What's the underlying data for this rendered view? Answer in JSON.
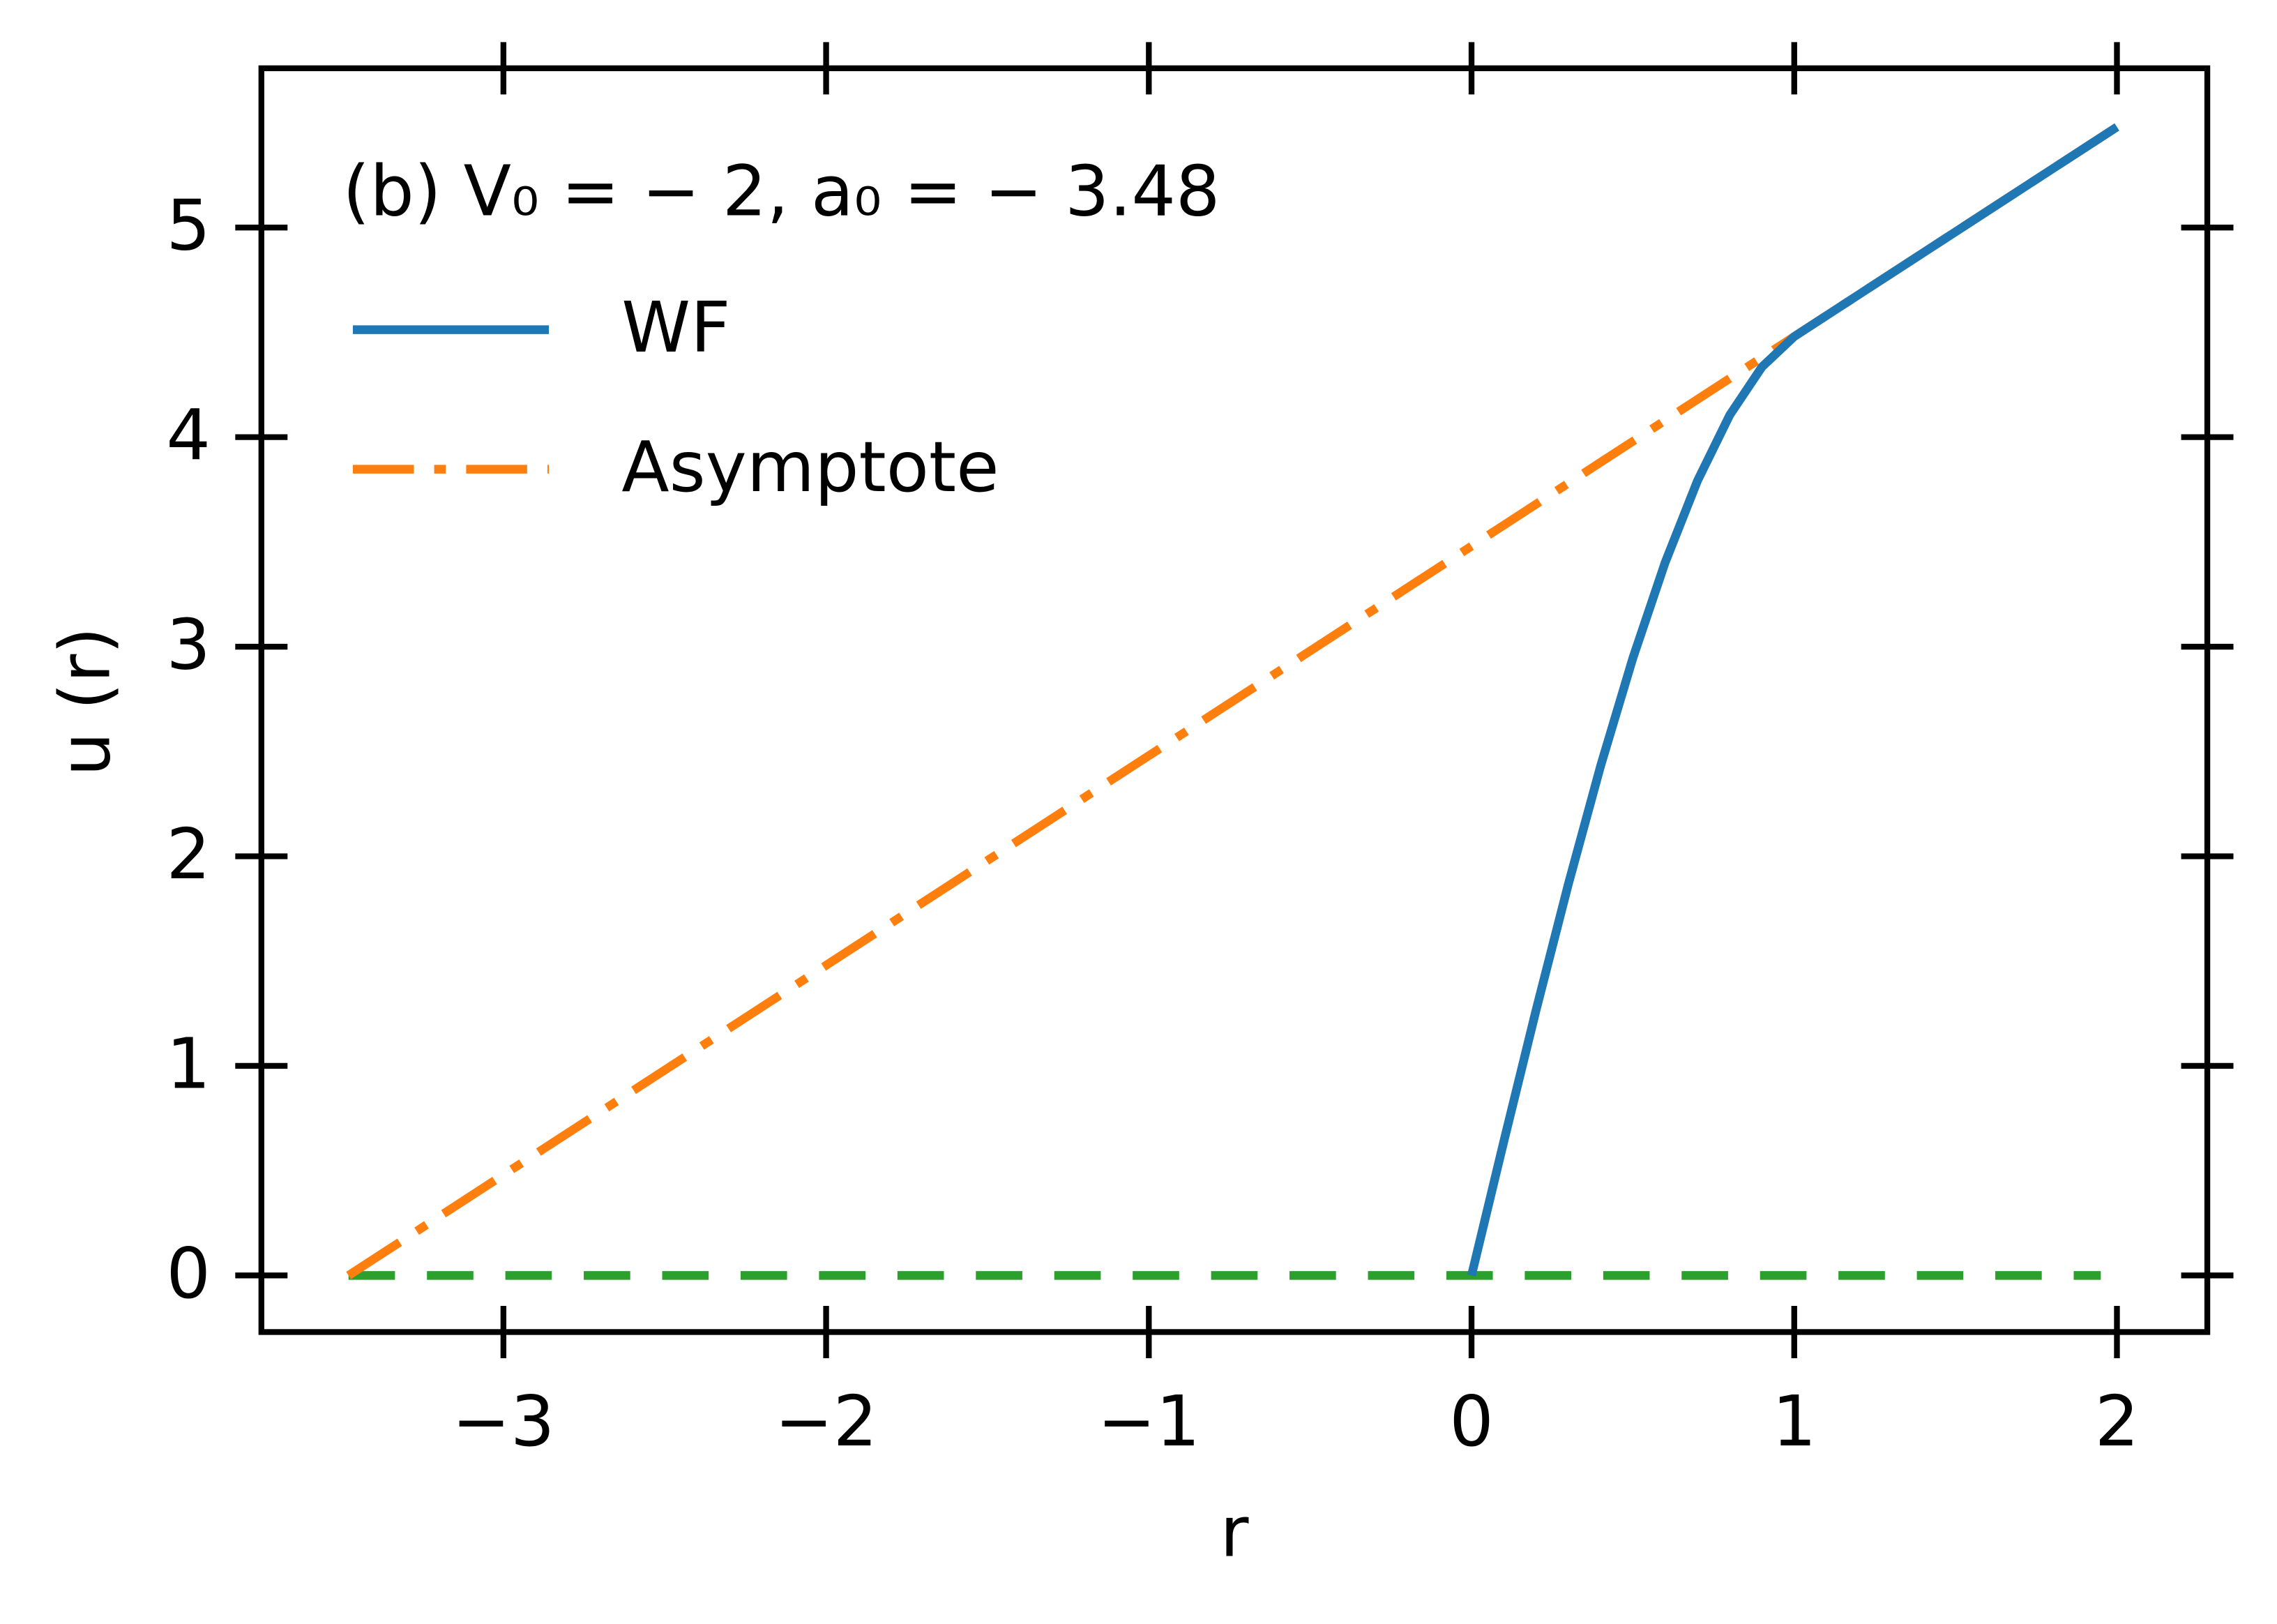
{
  "chart_data": {
    "type": "line",
    "annotation": "(b) V₀ = − 2, a₀ = − 3.48",
    "xlabel": "r",
    "ylabel": "u (r)",
    "xlim": [
      -3.75,
      2.28
    ],
    "ylim": [
      -0.27,
      5.76
    ],
    "xticks": [
      {
        "value": -3,
        "label": "−3"
      },
      {
        "value": -2,
        "label": "−2"
      },
      {
        "value": -1,
        "label": "−1"
      },
      0,
      1,
      2
    ],
    "yticks": [
      0,
      1,
      2,
      3,
      4,
      5
    ],
    "legend": "upper left",
    "series": [
      {
        "name": "WF",
        "color": "#1f77b4",
        "style": "solid",
        "x": [
          0,
          0.1,
          0.2,
          0.3,
          0.4,
          0.5,
          0.6,
          0.7,
          0.8,
          0.9,
          1.0,
          1.5,
          2.0
        ],
        "y": [
          0,
          0.639,
          1.266,
          1.867,
          2.431,
          2.946,
          3.402,
          3.791,
          4.105,
          4.335,
          4.48,
          4.98,
          5.48
        ]
      },
      {
        "name": "Asymptote",
        "color": "#ff7f0e",
        "style": "dashdot",
        "x": [
          -3.48,
          2.0
        ],
        "y": [
          0,
          5.48
        ]
      },
      {
        "color": "#2ca02c",
        "style": "dashed",
        "x": [
          -3.48,
          1.95
        ],
        "y": [
          0,
          0
        ]
      }
    ]
  }
}
